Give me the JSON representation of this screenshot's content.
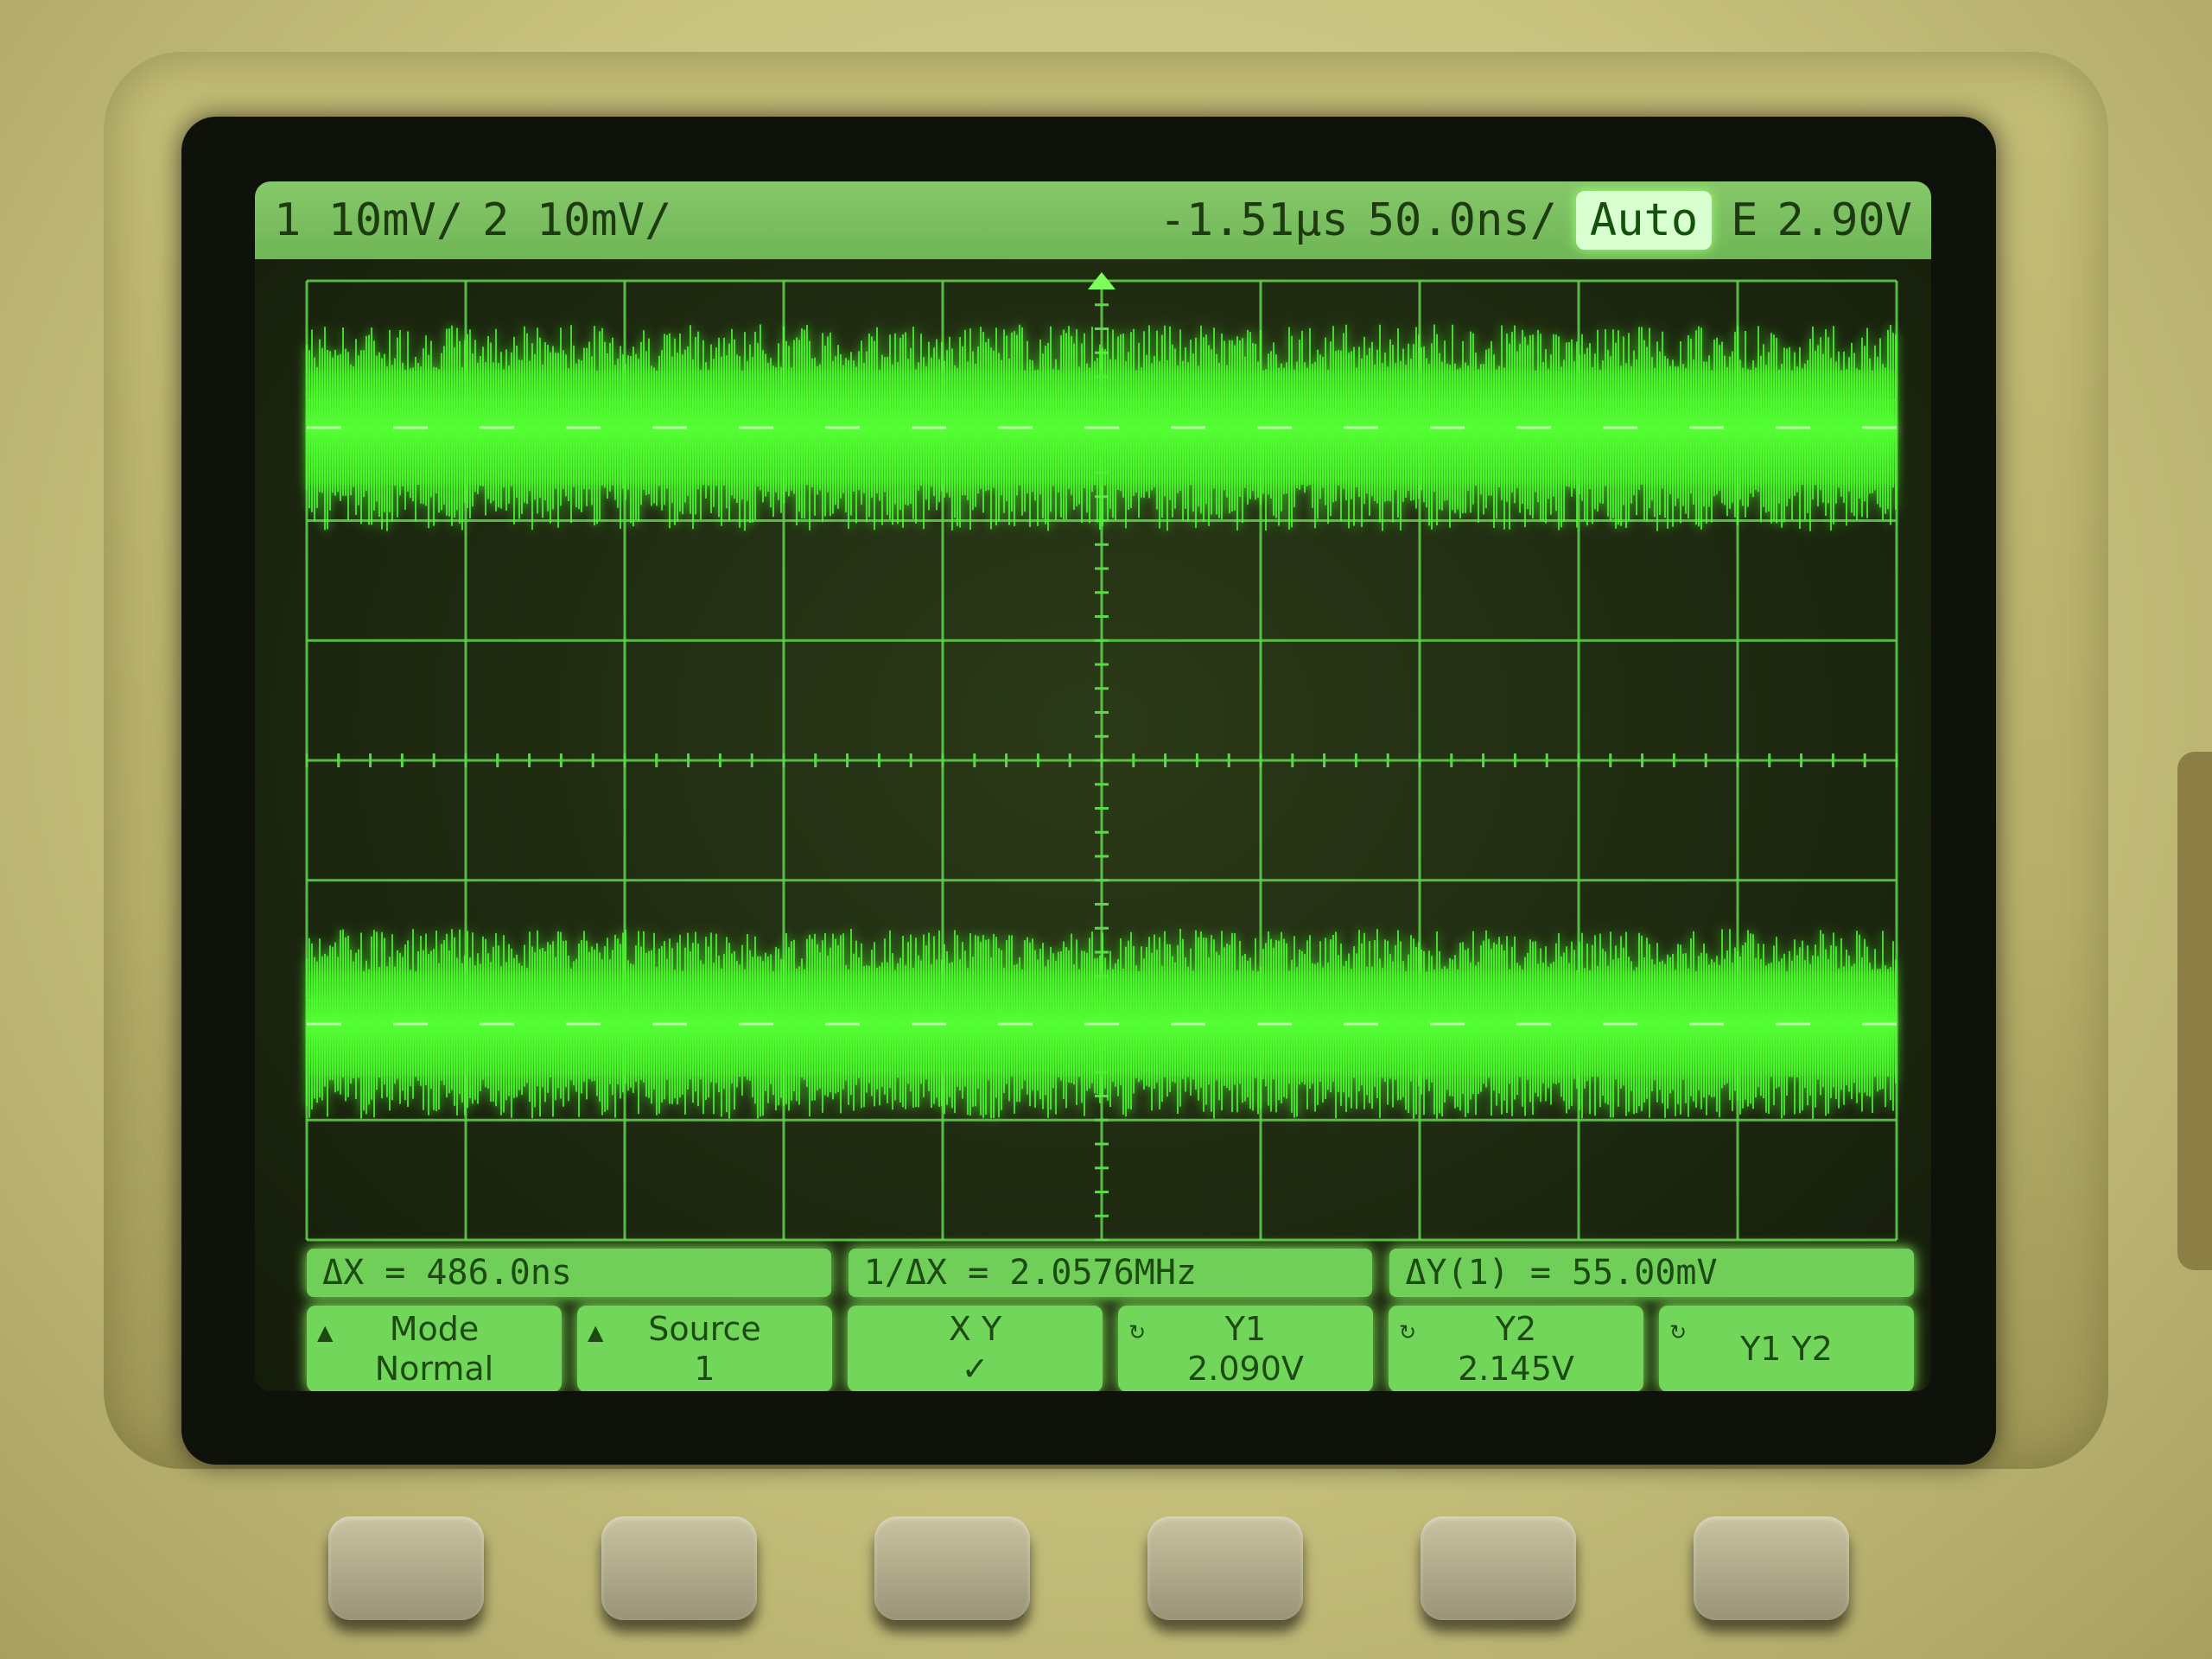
{
  "status_bar": {
    "ch1": "1  10mV/",
    "ch2": "2  10mV/",
    "delay": "-1.51µs",
    "timebase": "50.0ns/",
    "trigger_mode": "Auto",
    "trigger_edge": "E",
    "trigger_level": "2.90V"
  },
  "readouts": {
    "dx": "ΔX = 486.0ns",
    "inv_dx": "1/ΔX = 2.0576MHz",
    "dy": "ΔY(1) = 55.00mV"
  },
  "softkeys": [
    {
      "line1": "Mode",
      "line2": "Normal"
    },
    {
      "line1": "Source",
      "line2": "1"
    },
    {
      "line1": "X    Y",
      "line2": "✓"
    },
    {
      "line1": "Y1",
      "line2": "2.090V"
    },
    {
      "line1": "Y2",
      "line2": "2.145V"
    },
    {
      "line1": "Y1  Y2",
      "line2": ""
    }
  ],
  "colors": {
    "trace": "#4dff2e",
    "grid": "#5fd64a",
    "screen_bg": "#1d2810"
  }
}
